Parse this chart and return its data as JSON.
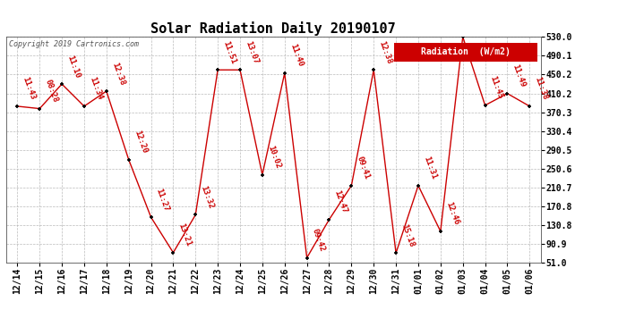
{
  "title": "Solar Radiation Daily 20190107",
  "copyright": "Copyright 2019 Cartronics.com",
  "legend_label": "Radiation  (W/m2)",
  "x_labels": [
    "12/14",
    "12/15",
    "12/16",
    "12/17",
    "12/18",
    "12/19",
    "12/20",
    "12/21",
    "12/22",
    "12/23",
    "12/24",
    "12/25",
    "12/26",
    "12/27",
    "12/28",
    "12/29",
    "12/30",
    "12/31",
    "01/01",
    "01/02",
    "01/03",
    "01/04",
    "01/05",
    "01/06"
  ],
  "y_values": [
    383,
    378,
    430,
    383,
    415,
    270,
    148,
    73,
    153,
    460,
    460,
    238,
    453,
    62,
    143,
    215,
    460,
    72,
    215,
    118,
    530,
    385,
    410,
    383
  ],
  "time_labels": [
    "11:43",
    "08:28",
    "11:10",
    "11:34",
    "12:38",
    "12:20",
    "11:27",
    "13:21",
    "13:32",
    "11:51",
    "13:07",
    "10:02",
    "11:40",
    "09:42",
    "12:47",
    "09:41",
    "12:38",
    "15:18",
    "11:31",
    "12:46",
    "",
    "11:45",
    "11:49",
    "11:38"
  ],
  "ylim_min": 51.0,
  "ylim_max": 530.0,
  "yticks": [
    51.0,
    90.9,
    130.8,
    170.8,
    210.7,
    250.6,
    290.5,
    330.4,
    370.3,
    410.2,
    450.2,
    490.1,
    530.0
  ],
  "line_color": "#cc0000",
  "marker_color": "#000000",
  "bg_color": "#ffffff",
  "grid_color": "#aaaaaa",
  "title_fontsize": 11,
  "label_fontsize": 7,
  "annot_fontsize": 6.5,
  "legend_bg": "#cc0000",
  "legend_fg": "#ffffff"
}
